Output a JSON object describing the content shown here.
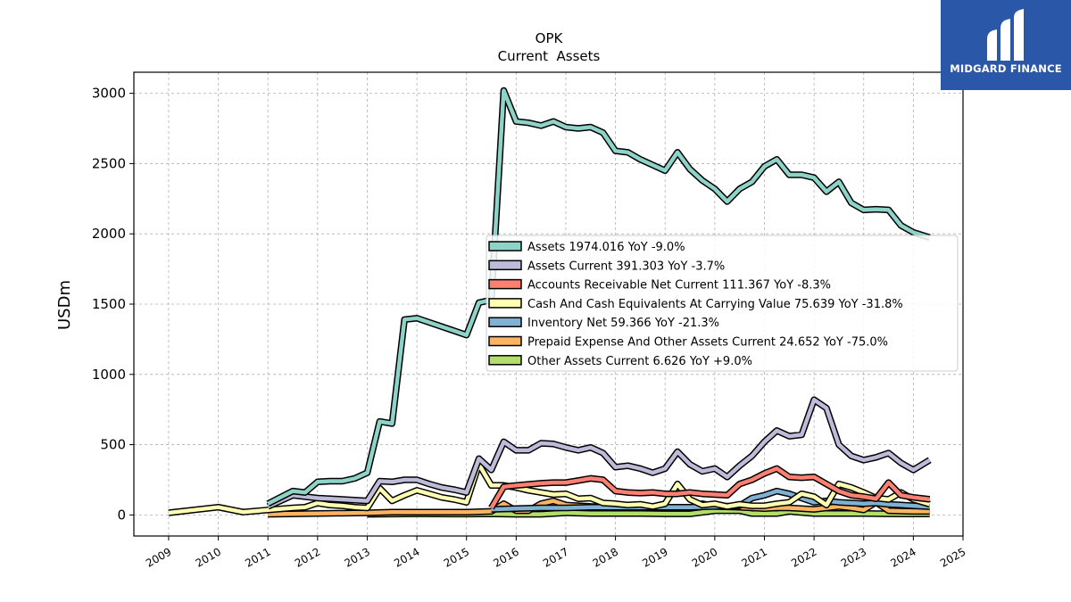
{
  "chart_data": {
    "type": "line",
    "title": "OPK",
    "subtitle": "Current  Assets",
    "xlabel": "",
    "ylabel": "USDm",
    "xlim": [
      2008.3,
      2025.0
    ],
    "ylim": [
      -150,
      3150
    ],
    "x_ticks": [
      "2009",
      "2010",
      "2011",
      "2012",
      "2013",
      "2014",
      "2015",
      "2016",
      "2017",
      "2018",
      "2019",
      "2020",
      "2021",
      "2022",
      "2023",
      "2024",
      "2025"
    ],
    "y_ticks": [
      "0",
      "500",
      "1000",
      "1500",
      "2000",
      "2500",
      "3000"
    ],
    "grid": true,
    "legend_position": "center-right",
    "series": [
      {
        "name": "Assets  1974.016 YoY -9.0%",
        "color": "#8dd3c7",
        "points": [
          [
            2011.0,
            80
          ],
          [
            2011.5,
            170
          ],
          [
            2011.75,
            160
          ],
          [
            2012.0,
            235
          ],
          [
            2012.25,
            240
          ],
          [
            2012.5,
            240
          ],
          [
            2012.75,
            260
          ],
          [
            2013.0,
            300
          ],
          [
            2013.25,
            665
          ],
          [
            2013.5,
            650
          ],
          [
            2013.75,
            1390
          ],
          [
            2014.0,
            1400
          ],
          [
            2014.25,
            1370
          ],
          [
            2014.5,
            1340
          ],
          [
            2014.75,
            1310
          ],
          [
            2015.0,
            1280
          ],
          [
            2015.25,
            1510
          ],
          [
            2015.5,
            1530
          ],
          [
            2015.75,
            3020
          ],
          [
            2016.0,
            2800
          ],
          [
            2016.25,
            2790
          ],
          [
            2016.5,
            2770
          ],
          [
            2016.75,
            2800
          ],
          [
            2017.0,
            2760
          ],
          [
            2017.25,
            2750
          ],
          [
            2017.5,
            2760
          ],
          [
            2017.75,
            2720
          ],
          [
            2018.0,
            2590
          ],
          [
            2018.25,
            2580
          ],
          [
            2018.5,
            2530
          ],
          [
            2018.75,
            2490
          ],
          [
            2019.0,
            2450
          ],
          [
            2019.25,
            2580
          ],
          [
            2019.5,
            2460
          ],
          [
            2019.75,
            2380
          ],
          [
            2020.0,
            2320
          ],
          [
            2020.25,
            2230
          ],
          [
            2020.5,
            2320
          ],
          [
            2020.75,
            2370
          ],
          [
            2021.0,
            2480
          ],
          [
            2021.25,
            2530
          ],
          [
            2021.5,
            2420
          ],
          [
            2021.75,
            2420
          ],
          [
            2022.0,
            2400
          ],
          [
            2022.25,
            2300
          ],
          [
            2022.5,
            2370
          ],
          [
            2022.75,
            2220
          ],
          [
            2023.0,
            2170
          ],
          [
            2023.25,
            2175
          ],
          [
            2023.5,
            2170
          ],
          [
            2023.75,
            2060
          ],
          [
            2024.0,
            2010
          ],
          [
            2024.33,
            1974
          ]
        ]
      },
      {
        "name": "Assets Current  391.303 YoY -3.7%",
        "color": "#bebada",
        "points": [
          [
            2011.0,
            60
          ],
          [
            2011.5,
            140
          ],
          [
            2011.75,
            130
          ],
          [
            2012.0,
            120
          ],
          [
            2012.5,
            110
          ],
          [
            2013.0,
            100
          ],
          [
            2013.25,
            240
          ],
          [
            2013.5,
            235
          ],
          [
            2013.75,
            250
          ],
          [
            2014.0,
            250
          ],
          [
            2014.25,
            220
          ],
          [
            2014.5,
            195
          ],
          [
            2014.75,
            180
          ],
          [
            2015.0,
            160
          ],
          [
            2015.25,
            400
          ],
          [
            2015.5,
            320
          ],
          [
            2015.75,
            520
          ],
          [
            2016.0,
            460
          ],
          [
            2016.25,
            460
          ],
          [
            2016.5,
            510
          ],
          [
            2016.75,
            505
          ],
          [
            2017.0,
            480
          ],
          [
            2017.25,
            460
          ],
          [
            2017.5,
            480
          ],
          [
            2017.75,
            440
          ],
          [
            2018.0,
            340
          ],
          [
            2018.25,
            350
          ],
          [
            2018.5,
            330
          ],
          [
            2018.75,
            300
          ],
          [
            2019.0,
            330
          ],
          [
            2019.25,
            450
          ],
          [
            2019.5,
            360
          ],
          [
            2019.75,
            310
          ],
          [
            2020.0,
            330
          ],
          [
            2020.25,
            270
          ],
          [
            2020.5,
            350
          ],
          [
            2020.75,
            420
          ],
          [
            2021.0,
            520
          ],
          [
            2021.25,
            600
          ],
          [
            2021.5,
            560
          ],
          [
            2021.75,
            570
          ],
          [
            2022.0,
            820
          ],
          [
            2022.25,
            760
          ],
          [
            2022.5,
            500
          ],
          [
            2022.75,
            420
          ],
          [
            2023.0,
            390
          ],
          [
            2023.25,
            410
          ],
          [
            2023.5,
            440
          ],
          [
            2023.75,
            370
          ],
          [
            2024.0,
            320
          ],
          [
            2024.33,
            391
          ]
        ]
      },
      {
        "name": "Accounts Receivable Net Current  111.367 YoY -8.3%",
        "color": "#fb8072",
        "points": [
          [
            2015.5,
            50
          ],
          [
            2015.75,
            200
          ],
          [
            2016.0,
            210
          ],
          [
            2016.5,
            225
          ],
          [
            2016.75,
            230
          ],
          [
            2017.0,
            230
          ],
          [
            2017.25,
            245
          ],
          [
            2017.5,
            260
          ],
          [
            2017.75,
            250
          ],
          [
            2018.0,
            170
          ],
          [
            2018.25,
            160
          ],
          [
            2018.5,
            155
          ],
          [
            2018.75,
            160
          ],
          [
            2019.0,
            150
          ],
          [
            2019.25,
            150
          ],
          [
            2019.5,
            160
          ],
          [
            2019.75,
            150
          ],
          [
            2020.0,
            145
          ],
          [
            2020.25,
            140
          ],
          [
            2020.5,
            220
          ],
          [
            2020.75,
            250
          ],
          [
            2021.0,
            295
          ],
          [
            2021.25,
            330
          ],
          [
            2021.5,
            270
          ],
          [
            2021.75,
            265
          ],
          [
            2022.0,
            270
          ],
          [
            2022.25,
            220
          ],
          [
            2022.5,
            170
          ],
          [
            2022.75,
            140
          ],
          [
            2023.0,
            130
          ],
          [
            2023.25,
            115
          ],
          [
            2023.5,
            230
          ],
          [
            2023.75,
            140
          ],
          [
            2024.0,
            125
          ],
          [
            2024.33,
            111
          ]
        ]
      },
      {
        "name": "Cash And Cash Equivalents At Carrying Value  75.639 YoY -31.8%",
        "color": "#ffffb3",
        "points": [
          [
            2009.0,
            15
          ],
          [
            2009.5,
            35
          ],
          [
            2010.0,
            55
          ],
          [
            2010.5,
            20
          ],
          [
            2011.0,
            35
          ],
          [
            2011.5,
            50
          ],
          [
            2011.75,
            55
          ],
          [
            2012.0,
            85
          ],
          [
            2012.25,
            70
          ],
          [
            2012.5,
            65
          ],
          [
            2012.75,
            55
          ],
          [
            2013.0,
            50
          ],
          [
            2013.25,
            190
          ],
          [
            2013.5,
            100
          ],
          [
            2013.75,
            140
          ],
          [
            2014.0,
            175
          ],
          [
            2014.25,
            150
          ],
          [
            2014.5,
            125
          ],
          [
            2014.75,
            110
          ],
          [
            2015.0,
            90
          ],
          [
            2015.25,
            360
          ],
          [
            2015.5,
            210
          ],
          [
            2015.75,
            210
          ],
          [
            2016.0,
            195
          ],
          [
            2016.25,
            175
          ],
          [
            2016.5,
            160
          ],
          [
            2016.75,
            145
          ],
          [
            2017.0,
            150
          ],
          [
            2017.25,
            115
          ],
          [
            2017.5,
            120
          ],
          [
            2017.75,
            85
          ],
          [
            2018.0,
            80
          ],
          [
            2018.25,
            70
          ],
          [
            2018.5,
            75
          ],
          [
            2018.75,
            60
          ],
          [
            2019.0,
            80
          ],
          [
            2019.25,
            220
          ],
          [
            2019.5,
            110
          ],
          [
            2019.75,
            70
          ],
          [
            2020.0,
            80
          ],
          [
            2020.25,
            60
          ],
          [
            2020.5,
            75
          ],
          [
            2020.75,
            65
          ],
          [
            2021.0,
            65
          ],
          [
            2021.25,
            80
          ],
          [
            2021.5,
            90
          ],
          [
            2021.75,
            150
          ],
          [
            2022.0,
            130
          ],
          [
            2022.25,
            70
          ],
          [
            2022.5,
            220
          ],
          [
            2022.75,
            195
          ],
          [
            2023.0,
            160
          ],
          [
            2023.25,
            120
          ],
          [
            2023.5,
            110
          ],
          [
            2023.75,
            160
          ],
          [
            2024.0,
            110
          ],
          [
            2024.33,
            76
          ]
        ]
      },
      {
        "name": "Inventory Net  59.366 YoY -21.3%",
        "color": "#80b1d3",
        "points": [
          [
            2015.5,
            40
          ],
          [
            2016.0,
            45
          ],
          [
            2016.5,
            50
          ],
          [
            2017.0,
            50
          ],
          [
            2017.5,
            55
          ],
          [
            2018.0,
            55
          ],
          [
            2018.5,
            55
          ],
          [
            2019.0,
            55
          ],
          [
            2019.5,
            55
          ],
          [
            2020.0,
            60
          ],
          [
            2020.5,
            65
          ],
          [
            2020.75,
            120
          ],
          [
            2021.0,
            140
          ],
          [
            2021.25,
            170
          ],
          [
            2021.5,
            150
          ],
          [
            2021.75,
            120
          ],
          [
            2022.0,
            90
          ],
          [
            2022.25,
            100
          ],
          [
            2022.5,
            90
          ],
          [
            2022.75,
            85
          ],
          [
            2023.0,
            80
          ],
          [
            2023.25,
            85
          ],
          [
            2023.5,
            75
          ],
          [
            2023.75,
            70
          ],
          [
            2024.0,
            65
          ],
          [
            2024.33,
            59
          ]
        ]
      },
      {
        "name": "Prepaid Expense And Other Assets Current  24.652 YoY -75.0%",
        "color": "#fdb462",
        "points": [
          [
            2011.0,
            5
          ],
          [
            2012.0,
            10
          ],
          [
            2013.0,
            15
          ],
          [
            2013.5,
            20
          ],
          [
            2014.0,
            20
          ],
          [
            2015.0,
            20
          ],
          [
            2015.5,
            25
          ],
          [
            2015.75,
            80
          ],
          [
            2016.0,
            30
          ],
          [
            2016.25,
            30
          ],
          [
            2016.5,
            80
          ],
          [
            2016.75,
            100
          ],
          [
            2017.0,
            70
          ],
          [
            2017.5,
            60
          ],
          [
            2018.0,
            55
          ],
          [
            2018.5,
            55
          ],
          [
            2019.0,
            55
          ],
          [
            2019.5,
            50
          ],
          [
            2019.75,
            80
          ],
          [
            2020.0,
            60
          ],
          [
            2020.5,
            55
          ],
          [
            2021.0,
            45
          ],
          [
            2021.25,
            50
          ],
          [
            2021.5,
            50
          ],
          [
            2022.0,
            40
          ],
          [
            2022.5,
            60
          ],
          [
            2022.75,
            50
          ],
          [
            2023.0,
            35
          ],
          [
            2023.25,
            90
          ],
          [
            2023.5,
            30
          ],
          [
            2024.0,
            25
          ],
          [
            2024.33,
            25
          ]
        ]
      },
      {
        "name": "Other Assets Current  6.626 YoY +9.0%",
        "color": "#b3de69",
        "points": [
          [
            2013.0,
            5
          ],
          [
            2014.0,
            8
          ],
          [
            2015.0,
            6
          ],
          [
            2015.5,
            8
          ],
          [
            2016.0,
            5
          ],
          [
            2016.5,
            5
          ],
          [
            2017.0,
            15
          ],
          [
            2017.5,
            10
          ],
          [
            2018.0,
            10
          ],
          [
            2018.5,
            10
          ],
          [
            2019.0,
            8
          ],
          [
            2019.5,
            8
          ],
          [
            2020.0,
            30
          ],
          [
            2020.5,
            30
          ],
          [
            2020.75,
            10
          ],
          [
            2021.0,
            10
          ],
          [
            2021.25,
            10
          ],
          [
            2021.5,
            25
          ],
          [
            2022.0,
            10
          ],
          [
            2022.5,
            10
          ],
          [
            2023.0,
            10
          ],
          [
            2023.5,
            8
          ],
          [
            2024.0,
            7
          ],
          [
            2024.33,
            7
          ]
        ]
      }
    ]
  },
  "logo": {
    "text": "MIDGARD FINANCE",
    "icon": "midgard-logo-icon"
  }
}
